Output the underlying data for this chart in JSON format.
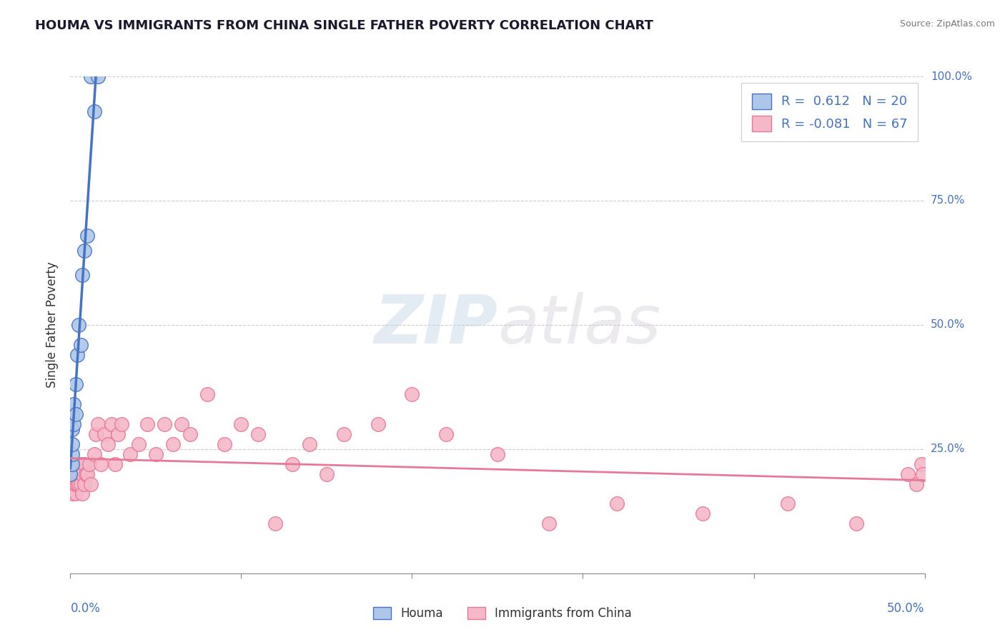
{
  "title": "HOUMA VS IMMIGRANTS FROM CHINA SINGLE FATHER POVERTY CORRELATION CHART",
  "source": "Source: ZipAtlas.com",
  "ylabel": "Single Father Poverty",
  "legend_houma": "Houma",
  "legend_china": "Immigrants from China",
  "r_houma": 0.612,
  "n_houma": 20,
  "r_china": -0.081,
  "n_china": 67,
  "xlim": [
    0.0,
    0.5
  ],
  "ylim": [
    0.0,
    1.0
  ],
  "yticks": [
    0.0,
    0.25,
    0.5,
    0.75,
    1.0
  ],
  "ytick_labels": [
    "",
    "25.0%",
    "50.0%",
    "75.0%",
    "100.0%"
  ],
  "color_houma_fill": "#aec6e8",
  "color_houma_edge": "#4472c4",
  "color_china_fill": "#f4b8c8",
  "color_china_edge": "#e87898",
  "color_houma_line": "#4472c4",
  "color_china_line": "#e87898",
  "watermark_zip": "ZIP",
  "watermark_atlas": "atlas",
  "houma_x": [
    0.0,
    0.0,
    0.001,
    0.001,
    0.001,
    0.001,
    0.001,
    0.002,
    0.002,
    0.003,
    0.003,
    0.004,
    0.005,
    0.006,
    0.007,
    0.008,
    0.01,
    0.012,
    0.014,
    0.016
  ],
  "houma_y": [
    0.2,
    0.22,
    0.22,
    0.24,
    0.26,
    0.29,
    0.32,
    0.3,
    0.34,
    0.32,
    0.38,
    0.44,
    0.5,
    0.46,
    0.6,
    0.65,
    0.68,
    1.0,
    0.93,
    1.0
  ],
  "china_x": [
    0.0,
    0.0,
    0.001,
    0.001,
    0.001,
    0.001,
    0.001,
    0.002,
    0.002,
    0.002,
    0.003,
    0.003,
    0.003,
    0.004,
    0.004,
    0.005,
    0.005,
    0.006,
    0.006,
    0.007,
    0.007,
    0.008,
    0.008,
    0.009,
    0.01,
    0.011,
    0.012,
    0.014,
    0.015,
    0.016,
    0.018,
    0.02,
    0.022,
    0.024,
    0.026,
    0.028,
    0.03,
    0.035,
    0.04,
    0.045,
    0.05,
    0.055,
    0.06,
    0.065,
    0.07,
    0.08,
    0.09,
    0.1,
    0.11,
    0.12,
    0.13,
    0.14,
    0.15,
    0.16,
    0.18,
    0.2,
    0.22,
    0.25,
    0.28,
    0.32,
    0.37,
    0.42,
    0.46,
    0.49,
    0.495,
    0.498,
    0.499
  ],
  "china_y": [
    0.18,
    0.2,
    0.18,
    0.2,
    0.16,
    0.2,
    0.22,
    0.18,
    0.2,
    0.22,
    0.16,
    0.18,
    0.2,
    0.18,
    0.22,
    0.18,
    0.2,
    0.18,
    0.22,
    0.16,
    0.2,
    0.18,
    0.22,
    0.2,
    0.2,
    0.22,
    0.18,
    0.24,
    0.28,
    0.3,
    0.22,
    0.28,
    0.26,
    0.3,
    0.22,
    0.28,
    0.3,
    0.24,
    0.26,
    0.3,
    0.24,
    0.3,
    0.26,
    0.3,
    0.28,
    0.36,
    0.26,
    0.3,
    0.28,
    0.1,
    0.22,
    0.26,
    0.2,
    0.28,
    0.3,
    0.36,
    0.28,
    0.24,
    0.1,
    0.14,
    0.12,
    0.14,
    0.1,
    0.2,
    0.18,
    0.22,
    0.2
  ]
}
